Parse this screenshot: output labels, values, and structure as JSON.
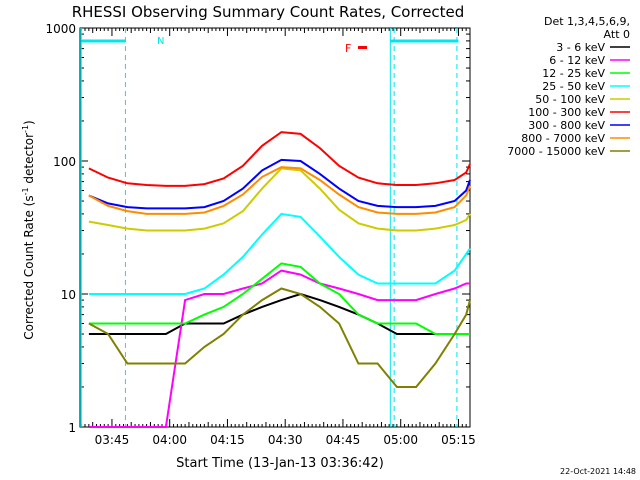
{
  "chart_data": {
    "type": "line",
    "title": "RHESSI Observing Summary Count Rates, Corrected",
    "xlabel": "Start Time (13-Jan-13 03:36:42)",
    "ylabel": "Corrected Count Rate (s-1 detector-1)",
    "ylabel_parts": {
      "a": "Corrected Count Rate (s",
      "b": "-1",
      "c": " detector",
      "d": "-1",
      "e": ")"
    },
    "yscale": "log",
    "ylim": [
      1,
      1000
    ],
    "xlim": [
      "03:36:42",
      "05:18:00"
    ],
    "y_tick_labels": [
      "1",
      "10",
      "100",
      "1000"
    ],
    "x_tick_labels": [
      "03:45",
      "04:00",
      "04:15",
      "04:30",
      "04:45",
      "05:00",
      "05:15"
    ],
    "x_tick_minutes": [
      225,
      240,
      255,
      270,
      285,
      300,
      315
    ],
    "legend_title": [
      "Det 1,3,4,5,6,9,",
      "Att 0"
    ],
    "timestamp": "22-Oct-2021 14:48",
    "annotations": {
      "N": "N",
      "F": "F"
    },
    "series": [
      {
        "name": "3 - 6 keV",
        "color": "#000000",
        "values": [
          5,
          5,
          5,
          5,
          5,
          6,
          6,
          6,
          7,
          8,
          9,
          10,
          9,
          8,
          7,
          6,
          5,
          5,
          5,
          5,
          5,
          5
        ]
      },
      {
        "name": "6 - 12 keV",
        "color": "#ff00ff",
        "values": [
          1,
          1,
          1,
          1,
          1,
          9,
          10,
          10,
          11,
          12,
          15,
          14,
          12,
          11,
          10,
          9,
          9,
          9,
          10,
          11,
          12,
          12
        ]
      },
      {
        "name": "12 - 25 keV",
        "color": "#00ff00",
        "values": [
          6,
          6,
          6,
          6,
          6,
          6,
          7,
          8,
          10,
          13,
          17,
          16,
          12,
          10,
          7,
          6,
          6,
          6,
          5,
          5,
          5,
          5
        ]
      },
      {
        "name": "25 - 50 keV",
        "color": "#00ffff",
        "values": [
          10,
          10,
          10,
          10,
          10,
          10,
          11,
          14,
          19,
          28,
          40,
          38,
          27,
          19,
          14,
          12,
          12,
          12,
          12,
          15,
          20,
          22
        ]
      },
      {
        "name": "50 - 100 keV",
        "color": "#cccc00",
        "values": [
          35,
          33,
          31,
          30,
          30,
          30,
          31,
          34,
          42,
          62,
          88,
          85,
          62,
          43,
          34,
          31,
          30,
          30,
          31,
          33,
          36,
          40
        ]
      },
      {
        "name": "100 - 300 keV",
        "color": "#ff0000",
        "values": [
          88,
          75,
          68,
          66,
          65,
          65,
          67,
          74,
          92,
          130,
          165,
          160,
          125,
          92,
          75,
          68,
          66,
          66,
          68,
          72,
          82,
          95
        ]
      },
      {
        "name": "300 - 800 keV",
        "color": "#0000ff",
        "values": [
          55,
          48,
          45,
          44,
          44,
          44,
          45,
          50,
          62,
          85,
          102,
          100,
          80,
          62,
          50,
          46,
          45,
          45,
          46,
          50,
          60,
          72
        ]
      },
      {
        "name": "800 - 7000 keV",
        "color": "#ff8c00",
        "values": [
          55,
          46,
          42,
          40,
          40,
          40,
          41,
          46,
          56,
          76,
          90,
          88,
          72,
          56,
          45,
          41,
          40,
          40,
          41,
          45,
          55,
          65
        ]
      },
      {
        "name": "7000 - 15000 keV",
        "color": "#808000",
        "values": [
          6,
          5,
          3,
          3,
          3,
          3,
          4,
          5,
          7,
          9,
          11,
          10,
          8,
          6,
          3,
          3,
          2,
          2,
          3,
          5,
          7,
          9
        ]
      }
    ],
    "x_minutes": [
      219,
      224,
      229,
      234,
      239,
      244,
      249,
      254,
      259,
      264,
      269,
      274,
      279,
      284,
      289,
      294,
      299,
      304,
      309,
      314,
      317,
      318
    ]
  }
}
